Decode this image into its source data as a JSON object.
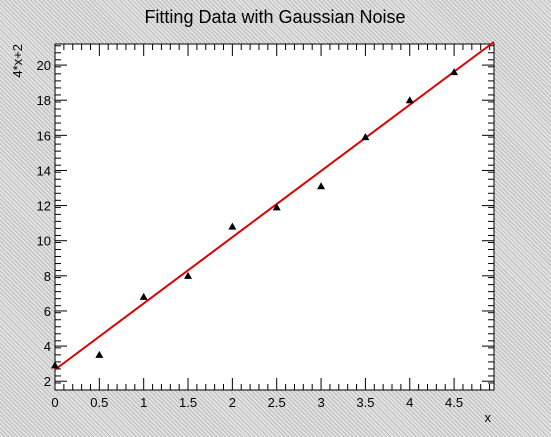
{
  "chart_data": {
    "type": "scatter",
    "title": "Fitting Data with Gaussian Noise",
    "xlabel": "x",
    "ylabel": "4*x+2",
    "xlim": [
      0,
      4.95
    ],
    "ylim": [
      1.5,
      21.2
    ],
    "x_ticks": [
      0,
      0.5,
      1,
      1.5,
      2,
      2.5,
      3,
      3.5,
      4,
      4.5
    ],
    "x_tick_labels": [
      "0",
      "0.5",
      "1",
      "1.5",
      "2",
      "2.5",
      "3",
      "3.5",
      "4",
      "4.5"
    ],
    "y_ticks": [
      2,
      4,
      6,
      8,
      10,
      12,
      14,
      16,
      18,
      20
    ],
    "y_tick_labels": [
      "2",
      "4",
      "6",
      "8",
      "10",
      "12",
      "14",
      "16",
      "18",
      "20"
    ],
    "grid": false,
    "series": [
      {
        "marker": "triangle",
        "color": "#000000",
        "points": [
          {
            "x": 0,
            "y": 2.9
          },
          {
            "x": 0.5,
            "y": 3.5
          },
          {
            "x": 1,
            "y": 6.8
          },
          {
            "x": 1.5,
            "y": 8.0
          },
          {
            "x": 2,
            "y": 10.8
          },
          {
            "x": 2.5,
            "y": 11.9
          },
          {
            "x": 3,
            "y": 13.1
          },
          {
            "x": 3.5,
            "y": 15.9
          },
          {
            "x": 4,
            "y": 18.0
          },
          {
            "x": 4.5,
            "y": 19.6
          }
        ]
      }
    ],
    "fit_line": {
      "color": "#e00000",
      "slope": 3.77,
      "intercept": 2.66
    }
  }
}
